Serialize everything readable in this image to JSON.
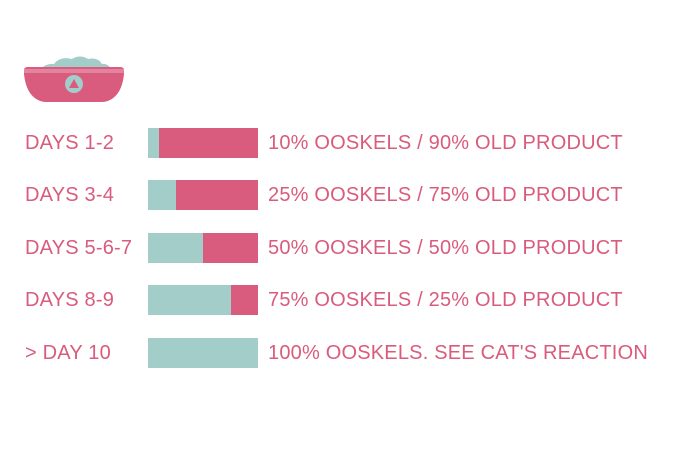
{
  "colors": {
    "text": "#d95b7d",
    "new": "#a3cdc8",
    "old": "#d95b7d",
    "bowl": "#d95b7d",
    "food": "#a3cdc8"
  },
  "icon": "cat-food-bowl-icon",
  "chart_data": {
    "type": "bar",
    "stacked": true,
    "orientation": "horizontal",
    "categories": [
      "DAYS 1-2",
      "DAYS 3-4",
      "DAYS 5-6-7",
      "DAYS 8-9",
      "> DAY 10"
    ],
    "series": [
      {
        "values": [
          10,
          25,
          50,
          75,
          100
        ]
      },
      {
        "values": [
          90,
          75,
          50,
          25,
          0
        ]
      }
    ],
    "annotations": [
      "10% OOSKELS / 90% OLD PRODUCT",
      "25% OOSKELS / 75% OLD PRODUCT",
      "50% OOSKELS / 50% OLD PRODUCT",
      "75% OOSKELS / 25% OLD PRODUCT",
      "100% OOSKELS. SEE CAT'S REACTION"
    ],
    "xlim": [
      0,
      100
    ],
    "grid": false
  }
}
